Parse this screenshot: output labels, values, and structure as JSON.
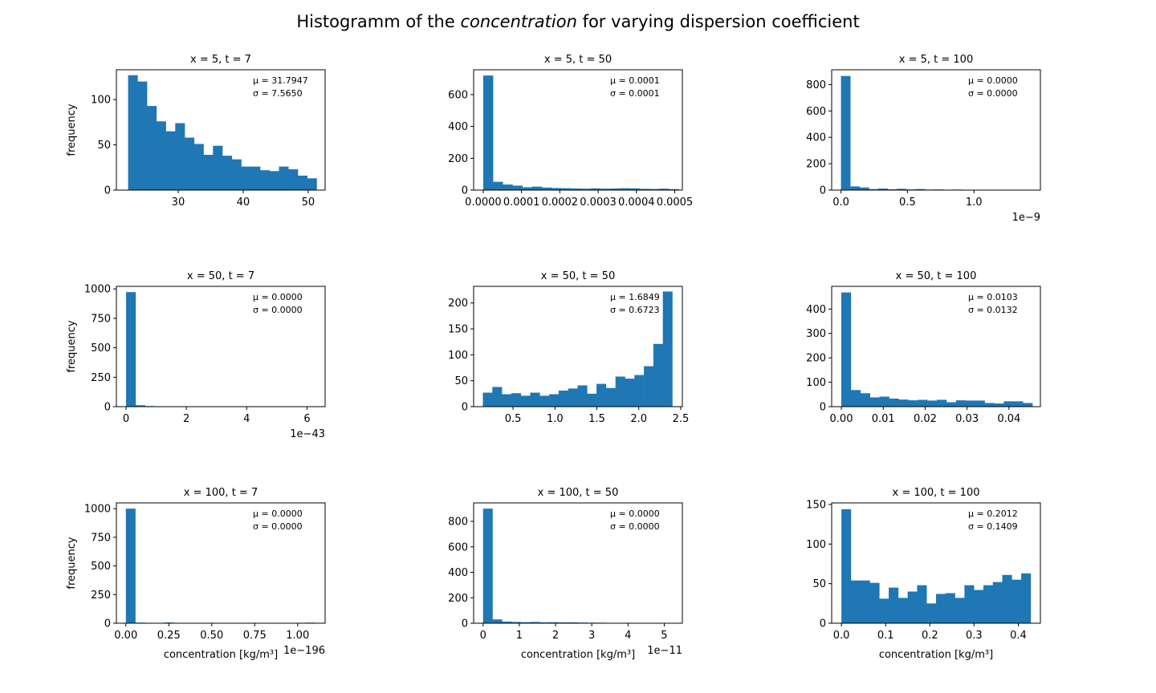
{
  "figure": {
    "title_prefix": "Histogramm of the ",
    "title_emph": "concentration",
    "title_suffix": "  for varying dispersion coefficient",
    "ylabel": "frequency",
    "xlabel": "concentration [kg/m³]"
  },
  "chart_data": [
    {
      "type": "bar",
      "title": "x = 5, t = 7",
      "stats": [
        "μ = 31.7947",
        "σ = 7.5650"
      ],
      "xlim": [
        20.5,
        52.6
      ],
      "ylim": [
        0,
        133
      ],
      "bin_edges": [
        22.3,
        23.75,
        25.2,
        26.65,
        28.1,
        29.55,
        31.0,
        32.45,
        33.9,
        35.35,
        36.8,
        38.25,
        39.7,
        41.15,
        42.6,
        44.05,
        45.5,
        46.95,
        48.4,
        49.85,
        51.3
      ],
      "values": [
        127,
        120,
        93,
        76,
        65,
        74,
        58,
        51,
        39,
        49,
        38,
        34,
        26,
        26,
        22,
        21,
        26,
        23,
        16,
        13
      ],
      "xticks": [
        30,
        40,
        50
      ],
      "xtick_labels": [
        "30",
        "40",
        "50"
      ],
      "yticks": [
        0,
        50,
        100
      ],
      "ytick_labels": [
        "0",
        "50",
        "100"
      ],
      "offset": ""
    },
    {
      "type": "bar",
      "title": "x = 5, t = 50",
      "stats": [
        "μ = 0.0001",
        "σ = 0.0001"
      ],
      "xlim": [
        -2.5e-05,
        0.00052
      ],
      "ylim": [
        0,
        756
      ],
      "bin_edges": [
        0,
        2.55e-05,
        5.1e-05,
        7.65e-05,
        0.000102,
        0.0001275,
        0.000153,
        0.0001785,
        0.000204,
        0.0002295,
        0.000255,
        0.0002805,
        0.000306,
        0.0003315,
        0.000357,
        0.0003825,
        0.000408,
        0.0004335,
        0.000459,
        0.0004845,
        0.00051
      ],
      "values": [
        720,
        52,
        35,
        28,
        18,
        22,
        16,
        13,
        12,
        10,
        9,
        11,
        9,
        10,
        12,
        11,
        8,
        7,
        9,
        6
      ],
      "xticks": [
        0,
        0.0001,
        0.0002,
        0.0003,
        0.0004,
        0.0005
      ],
      "xtick_labels": [
        "0.0000",
        "0.0001",
        "0.0002",
        "0.0003",
        "0.0004",
        "0.0005"
      ],
      "yticks": [
        0,
        200,
        400,
        600
      ],
      "ytick_labels": [
        "0",
        "200",
        "400",
        "600"
      ],
      "offset": ""
    },
    {
      "type": "bar",
      "title": "x = 5, t = 100",
      "stats": [
        "μ = 0.0000",
        "σ = 0.0000"
      ],
      "xlim": [
        -0.07,
        1.5
      ],
      "ylim": [
        0,
        912
      ],
      "bin_edges": [
        0,
        0.07,
        0.14,
        0.21,
        0.28,
        0.35,
        0.42,
        0.49,
        0.56,
        0.63,
        0.7,
        0.77,
        0.84,
        0.91,
        0.98,
        1.05,
        1.12,
        1.19,
        1.26,
        1.33,
        1.4
      ],
      "values": [
        865,
        28,
        20,
        8,
        12,
        6,
        10,
        5,
        8,
        4,
        5,
        3,
        4,
        3,
        3,
        2,
        2,
        2,
        2,
        1
      ],
      "xticks": [
        0,
        0.5,
        1.0
      ],
      "xtick_labels": [
        "0.0",
        "0.5",
        "1.0"
      ],
      "yticks": [
        0,
        200,
        400,
        600,
        800
      ],
      "ytick_labels": [
        "0",
        "200",
        "400",
        "600",
        "800"
      ],
      "offset": "1e−9"
    },
    {
      "type": "bar",
      "title": "x = 50, t = 7",
      "stats": [
        "μ = 0.0000",
        "σ = 0.0000"
      ],
      "xlim": [
        -0.32,
        6.6
      ],
      "ylim": [
        0,
        1022
      ],
      "bin_edges": [
        0,
        0.315,
        0.63,
        0.945,
        1.26,
        1.575,
        1.89,
        2.205,
        2.52,
        2.835,
        3.15,
        3.465,
        3.78,
        4.095,
        4.41,
        4.725,
        5.04,
        5.355,
        5.67,
        5.985,
        6.3
      ],
      "values": [
        973,
        12,
        5,
        2,
        1,
        1,
        1,
        1,
        0,
        1,
        0,
        1,
        0,
        0,
        1,
        0,
        0,
        0,
        0,
        1
      ],
      "xticks": [
        0,
        2,
        4,
        6
      ],
      "xtick_labels": [
        "0",
        "2",
        "4",
        "6"
      ],
      "yticks": [
        0,
        250,
        500,
        750,
        1000
      ],
      "ytick_labels": [
        "0",
        "250",
        "500",
        "750",
        "1000"
      ],
      "offset": "1e−43"
    },
    {
      "type": "bar",
      "title": "x = 50, t = 50",
      "stats": [
        "μ = 1.6849",
        "σ = 0.6723"
      ],
      "xlim": [
        0.03,
        2.52
      ],
      "ylim": [
        0,
        232
      ],
      "bin_edges": [
        0.14,
        0.253,
        0.366,
        0.479,
        0.592,
        0.705,
        0.818,
        0.931,
        1.044,
        1.157,
        1.27,
        1.383,
        1.496,
        1.609,
        1.722,
        1.835,
        1.948,
        2.061,
        2.174,
        2.287,
        2.4
      ],
      "values": [
        27,
        38,
        24,
        26,
        21,
        27,
        21,
        24,
        31,
        35,
        41,
        25,
        44,
        36,
        58,
        54,
        61,
        78,
        121,
        222
      ],
      "xticks": [
        0.5,
        1.0,
        1.5,
        2.0,
        2.5
      ],
      "xtick_labels": [
        "0.5",
        "1.0",
        "1.5",
        "2.0",
        "2.5"
      ],
      "yticks": [
        0,
        50,
        100,
        150,
        200
      ],
      "ytick_labels": [
        "0",
        "50",
        "100",
        "150",
        "200"
      ],
      "offset": ""
    },
    {
      "type": "bar",
      "title": "x = 50, t = 100",
      "stats": [
        "μ = 0.0103",
        "σ = 0.0132"
      ],
      "xlim": [
        -0.0023,
        0.0475
      ],
      "ylim": [
        0,
        493
      ],
      "bin_edges": [
        0,
        0.00228,
        0.00456,
        0.00684,
        0.00912,
        0.0114,
        0.01368,
        0.01596,
        0.01824,
        0.02052,
        0.0228,
        0.02508,
        0.02736,
        0.02964,
        0.03192,
        0.0342,
        0.03648,
        0.03876,
        0.04104,
        0.04332,
        0.0456
      ],
      "values": [
        468,
        68,
        55,
        38,
        41,
        33,
        29,
        26,
        28,
        25,
        28,
        18,
        26,
        25,
        25,
        15,
        13,
        22,
        22,
        15
      ],
      "xticks": [
        0,
        0.01,
        0.02,
        0.03,
        0.04
      ],
      "xtick_labels": [
        "0.00",
        "0.01",
        "0.02",
        "0.03",
        "0.04"
      ],
      "yticks": [
        0,
        100,
        200,
        300,
        400
      ],
      "ytick_labels": [
        "0",
        "100",
        "200",
        "300",
        "400"
      ],
      "offset": ""
    },
    {
      "type": "bar",
      "title": "x = 100, t = 7",
      "stats": [
        "μ = 0.0000",
        "σ = 0.0000"
      ],
      "xlim": [
        -0.055,
        1.16
      ],
      "ylim": [
        0,
        1050
      ],
      "bin_edges": [
        0,
        0.055,
        0.11,
        0.165,
        0.22,
        0.275,
        0.33,
        0.385,
        0.44,
        0.495,
        0.55,
        0.605,
        0.66,
        0.715,
        0.77,
        0.825,
        0.88,
        0.935,
        0.99,
        1.045,
        1.1
      ],
      "values": [
        1000,
        5,
        0,
        0,
        6,
        0,
        0,
        0,
        0,
        0,
        0,
        0,
        0,
        0,
        0,
        0,
        0,
        0,
        0,
        5
      ],
      "xticks": [
        0,
        0.25,
        0.5,
        0.75,
        1.0
      ],
      "xtick_labels": [
        "0.00",
        "0.25",
        "0.50",
        "0.75",
        "1.00"
      ],
      "yticks": [
        0,
        250,
        500,
        750,
        1000
      ],
      "ytick_labels": [
        "0",
        "250",
        "500",
        "750",
        "1000"
      ],
      "offset": "1e−196"
    },
    {
      "type": "bar",
      "title": "x = 100, t = 50",
      "stats": [
        "μ = 0.0000",
        "σ = 0.0000"
      ],
      "xlim": [
        -0.26,
        5.5
      ],
      "ylim": [
        0,
        945
      ],
      "bin_edges": [
        0,
        0.26,
        0.52,
        0.78,
        1.04,
        1.3,
        1.56,
        1.82,
        2.08,
        2.34,
        2.6,
        2.86,
        3.12,
        3.38,
        3.64,
        3.9,
        4.16,
        4.42,
        4.68,
        4.94,
        5.2
      ],
      "values": [
        900,
        30,
        13,
        10,
        8,
        10,
        7,
        8,
        6,
        7,
        5,
        4,
        4,
        3,
        3,
        3,
        2,
        2,
        2,
        2
      ],
      "xticks": [
        0,
        1,
        2,
        3,
        4,
        5
      ],
      "xtick_labels": [
        "0",
        "1",
        "2",
        "3",
        "4",
        "5"
      ],
      "yticks": [
        0,
        200,
        400,
        600,
        800
      ],
      "ytick_labels": [
        "0",
        "200",
        "400",
        "600",
        "800"
      ],
      "offset": "1e−11"
    },
    {
      "type": "bar",
      "title": "x = 100, t = 100",
      "stats": [
        "μ = 0.2012",
        "σ = 0.1409"
      ],
      "xlim": [
        -0.022,
        0.45
      ],
      "ylim": [
        0,
        152
      ],
      "bin_edges": [
        0,
        0.0214,
        0.0428,
        0.0642,
        0.0856,
        0.107,
        0.1284,
        0.1498,
        0.1712,
        0.1926,
        0.214,
        0.2354,
        0.2568,
        0.2782,
        0.2996,
        0.321,
        0.3424,
        0.3638,
        0.3852,
        0.4066,
        0.428
      ],
      "values": [
        144,
        54,
        54,
        51,
        31,
        45,
        32,
        40,
        48,
        25,
        37,
        38,
        32,
        48,
        42,
        48,
        52,
        61,
        55,
        63
      ],
      "xticks": [
        0,
        0.1,
        0.2,
        0.3,
        0.4
      ],
      "xtick_labels": [
        "0.0",
        "0.1",
        "0.2",
        "0.3",
        "0.4"
      ],
      "yticks": [
        0,
        50,
        100,
        150
      ],
      "ytick_labels": [
        "0",
        "50",
        "100",
        "150"
      ],
      "offset": ""
    }
  ]
}
